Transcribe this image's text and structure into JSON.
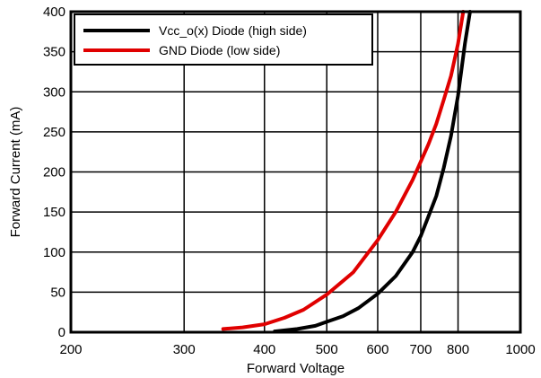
{
  "chart_data": {
    "type": "line",
    "xlabel": "Forward Voltage",
    "ylabel": "Forward Current (mA)",
    "xscale": "log",
    "xlim": [
      200,
      1000
    ],
    "ylim": [
      0,
      400
    ],
    "xticks": [
      200,
      300,
      400,
      500,
      600,
      700,
      800,
      1000
    ],
    "xtick_labels": [
      "200",
      "300",
      "400",
      "500",
      "600",
      "700",
      "800",
      "1000"
    ],
    "yticks": [
      0,
      50,
      100,
      150,
      200,
      250,
      300,
      350,
      400
    ],
    "ytick_labels": [
      "0",
      "50",
      "100",
      "150",
      "200",
      "250",
      "300",
      "350",
      "400"
    ],
    "grid": true,
    "legend_position": "top-left",
    "series": [
      {
        "name": "Vcc_o(x) Diode (high side)",
        "color": "#000000",
        "x": [
          415,
          450,
          480,
          500,
          530,
          560,
          600,
          640,
          680,
          700,
          720,
          740,
          760,
          780,
          800,
          820,
          835
        ],
        "y": [
          1,
          4,
          8,
          13,
          20,
          30,
          48,
          70,
          100,
          120,
          145,
          170,
          205,
          245,
          295,
          360,
          400
        ]
      },
      {
        "name": "GND Diode (low side)",
        "color": "#e00000",
        "x": [
          345,
          370,
          400,
          430,
          460,
          500,
          550,
          600,
          640,
          680,
          720,
          740,
          760,
          780,
          800,
          815
        ],
        "y": [
          4,
          6,
          10,
          18,
          28,
          47,
          75,
          115,
          150,
          190,
          235,
          260,
          290,
          320,
          360,
          400
        ]
      }
    ]
  }
}
